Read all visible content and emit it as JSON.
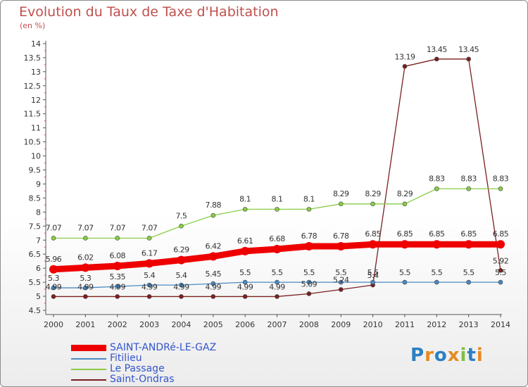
{
  "header": {
    "title": "Evolution du Taux de Taxe d'Habitation",
    "subtitle": "(en %)"
  },
  "logo": {
    "text": "Proxiti",
    "letters": [
      "P",
      "r",
      "o",
      "x",
      "i",
      "t",
      "i"
    ],
    "colors": [
      "#2c7fc2",
      "#e68a1f",
      "#2c7fc2",
      "#e68a1f",
      "#7fbf3f",
      "#2c7fc2",
      "#e68a1f"
    ]
  },
  "chart_data": {
    "type": "line",
    "title": "Evolution du Taux de Taxe d'Habitation",
    "ylabel": "(en %)",
    "xlabel": "",
    "ylim": [
      4.5,
      14
    ],
    "grid": false,
    "legend_position": "bottom-left",
    "x": [
      "2000",
      "2001",
      "2002",
      "2003",
      "2004",
      "2005",
      "2006",
      "2007",
      "2008",
      "2009",
      "2010",
      "2011",
      "2012",
      "2013",
      "2014"
    ],
    "y_ticks": [
      "4.5",
      "5",
      "5.5",
      "6",
      "6.5",
      "7",
      "7.5",
      "8",
      "8.5",
      "9",
      "9.5",
      "10",
      "10.5",
      "11",
      "11.5",
      "12",
      "12.5",
      "13",
      "13.5",
      "14"
    ],
    "series": [
      {
        "name": "SAINT-ANDRé-LE-GAZ",
        "color": "#ee0000",
        "values": [
          5.96,
          6.02,
          6.08,
          6.17,
          6.29,
          6.42,
          6.61,
          6.68,
          6.78,
          6.78,
          6.85,
          6.85,
          6.85,
          6.85,
          6.85
        ],
        "labels": [
          "5.96",
          "6.02",
          "6.08",
          "6.17",
          "6.29",
          "6.42",
          "6.61",
          "6.68",
          "6.78",
          "6.78",
          "6.85",
          "6.85",
          "6.85",
          "6.85",
          "6.85"
        ]
      },
      {
        "name": "Fitilieu",
        "color": "#4a8ac4",
        "values": [
          5.3,
          5.3,
          5.35,
          5.4,
          5.4,
          5.45,
          5.5,
          5.5,
          5.5,
          5.5,
          5.5,
          5.5,
          5.5,
          5.5,
          5.5
        ],
        "labels": [
          "5.3",
          "5.3",
          "5.35",
          "5.4",
          "5.4",
          "5.45",
          "5.5",
          "5.5",
          "5.5",
          "5.5",
          "5.5",
          "5.5",
          "5.5",
          "5.5",
          "5.5"
        ]
      },
      {
        "name": "Le Passage",
        "color": "#88cc44",
        "values": [
          7.07,
          7.07,
          7.07,
          7.07,
          7.5,
          7.88,
          8.1,
          8.1,
          8.1,
          8.29,
          8.29,
          8.29,
          8.83,
          8.83,
          8.83
        ],
        "labels": [
          "7.07",
          "7.07",
          "7.07",
          "7.07",
          "7.5",
          "7.88",
          "8.1",
          "8.1",
          "8.1",
          "8.29",
          "8.29",
          "8.29",
          "8.83",
          "8.83",
          "8.83"
        ]
      },
      {
        "name": "Saint-Ondras",
        "color": "#7a1f1f",
        "values": [
          4.99,
          4.99,
          4.99,
          4.99,
          4.99,
          4.99,
          4.99,
          4.99,
          5.09,
          5.24,
          5.4,
          13.19,
          13.45,
          13.45,
          5.92
        ],
        "labels": [
          "4.99",
          "4.99",
          "4.99",
          "4.99",
          "4.99",
          "4.99",
          "4.99",
          "4.99",
          "5.09",
          "5.24",
          "5.4",
          "13.19",
          "13.45",
          "13.45",
          "5.92"
        ]
      }
    ]
  }
}
